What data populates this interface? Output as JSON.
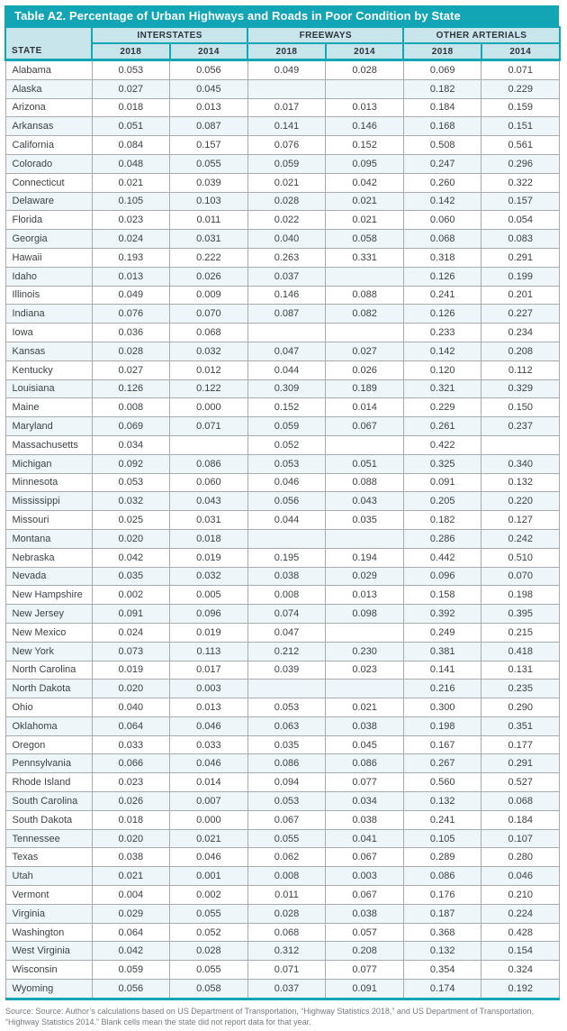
{
  "colors": {
    "accent": "#12a5b5",
    "header_bg": "#c9e5ec",
    "row_alt": "#eef6f9",
    "grid": "#a7abae",
    "body_text": "#3c4246",
    "source_text": "#757b7f"
  },
  "table": {
    "title": "Table A2. Percentage of Urban Highways and Roads in Poor Condition by State",
    "state_header": "STATE",
    "groups": [
      {
        "label": "INTERSTATES",
        "years": [
          "2018",
          "2014"
        ]
      },
      {
        "label": "FREEWAYS",
        "years": [
          "2018",
          "2014"
        ]
      },
      {
        "label": "OTHER ARTERIALS",
        "years": [
          "2018",
          "2014"
        ]
      }
    ],
    "rows": [
      {
        "state": "Alabama",
        "values": [
          "0.053",
          "0.056",
          "0.049",
          "0.028",
          "0.069",
          "0.071"
        ]
      },
      {
        "state": "Alaska",
        "values": [
          "0.027",
          "0.045",
          "",
          "",
          "0.182",
          "0.229"
        ]
      },
      {
        "state": "Arizona",
        "values": [
          "0.018",
          "0.013",
          "0.017",
          "0.013",
          "0.184",
          "0.159"
        ]
      },
      {
        "state": "Arkansas",
        "values": [
          "0.051",
          "0.087",
          "0.141",
          "0.146",
          "0.168",
          "0.151"
        ]
      },
      {
        "state": "California",
        "values": [
          "0.084",
          "0.157",
          "0.076",
          "0.152",
          "0.508",
          "0.561"
        ]
      },
      {
        "state": "Colorado",
        "values": [
          "0.048",
          "0.055",
          "0.059",
          "0.095",
          "0.247",
          "0.296"
        ]
      },
      {
        "state": "Connecticut",
        "values": [
          "0.021",
          "0.039",
          "0.021",
          "0.042",
          "0.260",
          "0.322"
        ]
      },
      {
        "state": "Delaware",
        "values": [
          "0.105",
          "0.103",
          "0.028",
          "0.021",
          "0.142",
          "0.157"
        ]
      },
      {
        "state": "Florida",
        "values": [
          "0.023",
          "0.011",
          "0.022",
          "0.021",
          "0.060",
          "0.054"
        ]
      },
      {
        "state": "Georgia",
        "values": [
          "0.024",
          "0.031",
          "0.040",
          "0.058",
          "0.068",
          "0.083"
        ]
      },
      {
        "state": "Hawaii",
        "values": [
          "0.193",
          "0.222",
          "0.263",
          "0.331",
          "0.318",
          "0.291"
        ]
      },
      {
        "state": "Idaho",
        "values": [
          "0.013",
          "0.026",
          "0.037",
          "",
          "0.126",
          "0.199"
        ]
      },
      {
        "state": "Illinois",
        "values": [
          "0.049",
          "0.009",
          "0.146",
          "0.088",
          "0.241",
          "0.201"
        ]
      },
      {
        "state": "Indiana",
        "values": [
          "0.076",
          "0.070",
          "0.087",
          "0.082",
          "0.126",
          "0.227"
        ]
      },
      {
        "state": "Iowa",
        "values": [
          "0.036",
          "0.068",
          "",
          "",
          "0.233",
          "0.234"
        ]
      },
      {
        "state": "Kansas",
        "values": [
          "0.028",
          "0.032",
          "0.047",
          "0.027",
          "0.142",
          "0.208"
        ]
      },
      {
        "state": "Kentucky",
        "values": [
          "0.027",
          "0.012",
          "0.044",
          "0.026",
          "0.120",
          "0.112"
        ]
      },
      {
        "state": "Louisiana",
        "values": [
          "0.126",
          "0.122",
          "0.309",
          "0.189",
          "0.321",
          "0.329"
        ]
      },
      {
        "state": "Maine",
        "values": [
          "0.008",
          "0.000",
          "0.152",
          "0.014",
          "0.229",
          "0.150"
        ]
      },
      {
        "state": "Maryland",
        "values": [
          "0.069",
          "0.071",
          "0.059",
          "0.067",
          "0.261",
          "0.237"
        ]
      },
      {
        "state": "Massachusetts",
        "values": [
          "0.034",
          "",
          "0.052",
          "",
          "0.422",
          ""
        ]
      },
      {
        "state": "Michigan",
        "values": [
          "0.092",
          "0.086",
          "0.053",
          "0.051",
          "0.325",
          "0.340"
        ]
      },
      {
        "state": "Minnesota",
        "values": [
          "0.053",
          "0.060",
          "0.046",
          "0.088",
          "0.091",
          "0.132"
        ]
      },
      {
        "state": "Mississippi",
        "values": [
          "0.032",
          "0.043",
          "0.056",
          "0.043",
          "0.205",
          "0.220"
        ]
      },
      {
        "state": "Missouri",
        "values": [
          "0.025",
          "0.031",
          "0.044",
          "0.035",
          "0.182",
          "0.127"
        ]
      },
      {
        "state": "Montana",
        "values": [
          "0.020",
          "0.018",
          "",
          "",
          "0.286",
          "0.242"
        ]
      },
      {
        "state": "Nebraska",
        "values": [
          "0.042",
          "0.019",
          "0.195",
          "0.194",
          "0.442",
          "0.510"
        ]
      },
      {
        "state": "Nevada",
        "values": [
          "0.035",
          "0.032",
          "0.038",
          "0.029",
          "0.096",
          "0.070"
        ]
      },
      {
        "state": "New Hampshire",
        "values": [
          "0.002",
          "0.005",
          "0.008",
          "0.013",
          "0.158",
          "0.198"
        ]
      },
      {
        "state": "New Jersey",
        "values": [
          "0.091",
          "0.096",
          "0.074",
          "0.098",
          "0.392",
          "0.395"
        ]
      },
      {
        "state": "New Mexico",
        "values": [
          "0.024",
          "0.019",
          "0.047",
          "",
          "0.249",
          "0.215"
        ]
      },
      {
        "state": "New York",
        "values": [
          "0.073",
          "0.113",
          "0.212",
          "0.230",
          "0.381",
          "0.418"
        ]
      },
      {
        "state": "North Carolina",
        "values": [
          "0.019",
          "0.017",
          "0.039",
          "0.023",
          "0.141",
          "0.131"
        ]
      },
      {
        "state": "North Dakota",
        "values": [
          "0.020",
          "0.003",
          "",
          "",
          "0.216",
          "0.235"
        ]
      },
      {
        "state": "Ohio",
        "values": [
          "0.040",
          "0.013",
          "0.053",
          "0.021",
          "0.300",
          "0.290"
        ]
      },
      {
        "state": "Oklahoma",
        "values": [
          "0.064",
          "0.046",
          "0.063",
          "0.038",
          "0.198",
          "0.351"
        ]
      },
      {
        "state": "Oregon",
        "values": [
          "0.033",
          "0.033",
          "0.035",
          "0.045",
          "0.167",
          "0.177"
        ]
      },
      {
        "state": "Pennsylvania",
        "values": [
          "0.066",
          "0.046",
          "0.086",
          "0.086",
          "0.267",
          "0.291"
        ]
      },
      {
        "state": "Rhode Island",
        "values": [
          "0.023",
          "0.014",
          "0.094",
          "0.077",
          "0.560",
          "0.527"
        ]
      },
      {
        "state": "South Carolina",
        "values": [
          "0.026",
          "0.007",
          "0.053",
          "0.034",
          "0.132",
          "0.068"
        ]
      },
      {
        "state": "South Dakota",
        "values": [
          "0.018",
          "0.000",
          "0.067",
          "0.038",
          "0.241",
          "0.184"
        ]
      },
      {
        "state": "Tennessee",
        "values": [
          "0.020",
          "0.021",
          "0.055",
          "0.041",
          "0.105",
          "0.107"
        ]
      },
      {
        "state": "Texas",
        "values": [
          "0.038",
          "0.046",
          "0.062",
          "0.067",
          "0.289",
          "0.280"
        ]
      },
      {
        "state": "Utah",
        "values": [
          "0.021",
          "0.001",
          "0.008",
          "0.003",
          "0.086",
          "0.046"
        ]
      },
      {
        "state": "Vermont",
        "values": [
          "0.004",
          "0.002",
          "0.011",
          "0.067",
          "0.176",
          "0.210"
        ]
      },
      {
        "state": "Virginia",
        "values": [
          "0.029",
          "0.055",
          "0.028",
          "0.038",
          "0.187",
          "0.224"
        ]
      },
      {
        "state": "Washington",
        "values": [
          "0.064",
          "0.052",
          "0.068",
          "0.057",
          "0.368",
          "0.428"
        ]
      },
      {
        "state": "West Virginia",
        "values": [
          "0.042",
          "0.028",
          "0.312",
          "0.208",
          "0.132",
          "0.154"
        ]
      },
      {
        "state": "Wisconsin",
        "values": [
          "0.059",
          "0.055",
          "0.071",
          "0.077",
          "0.354",
          "0.324"
        ]
      },
      {
        "state": "Wyoming",
        "values": [
          "0.056",
          "0.058",
          "0.037",
          "0.091",
          "0.174",
          "0.192"
        ]
      }
    ]
  },
  "source": "Source: Source: Author’s calculations based on US Department of Transportation, “Highway Statistics 2018,” and US Department of Transportation, “Highway Statistics 2014.” Blank cells mean the state did not report data for that year."
}
